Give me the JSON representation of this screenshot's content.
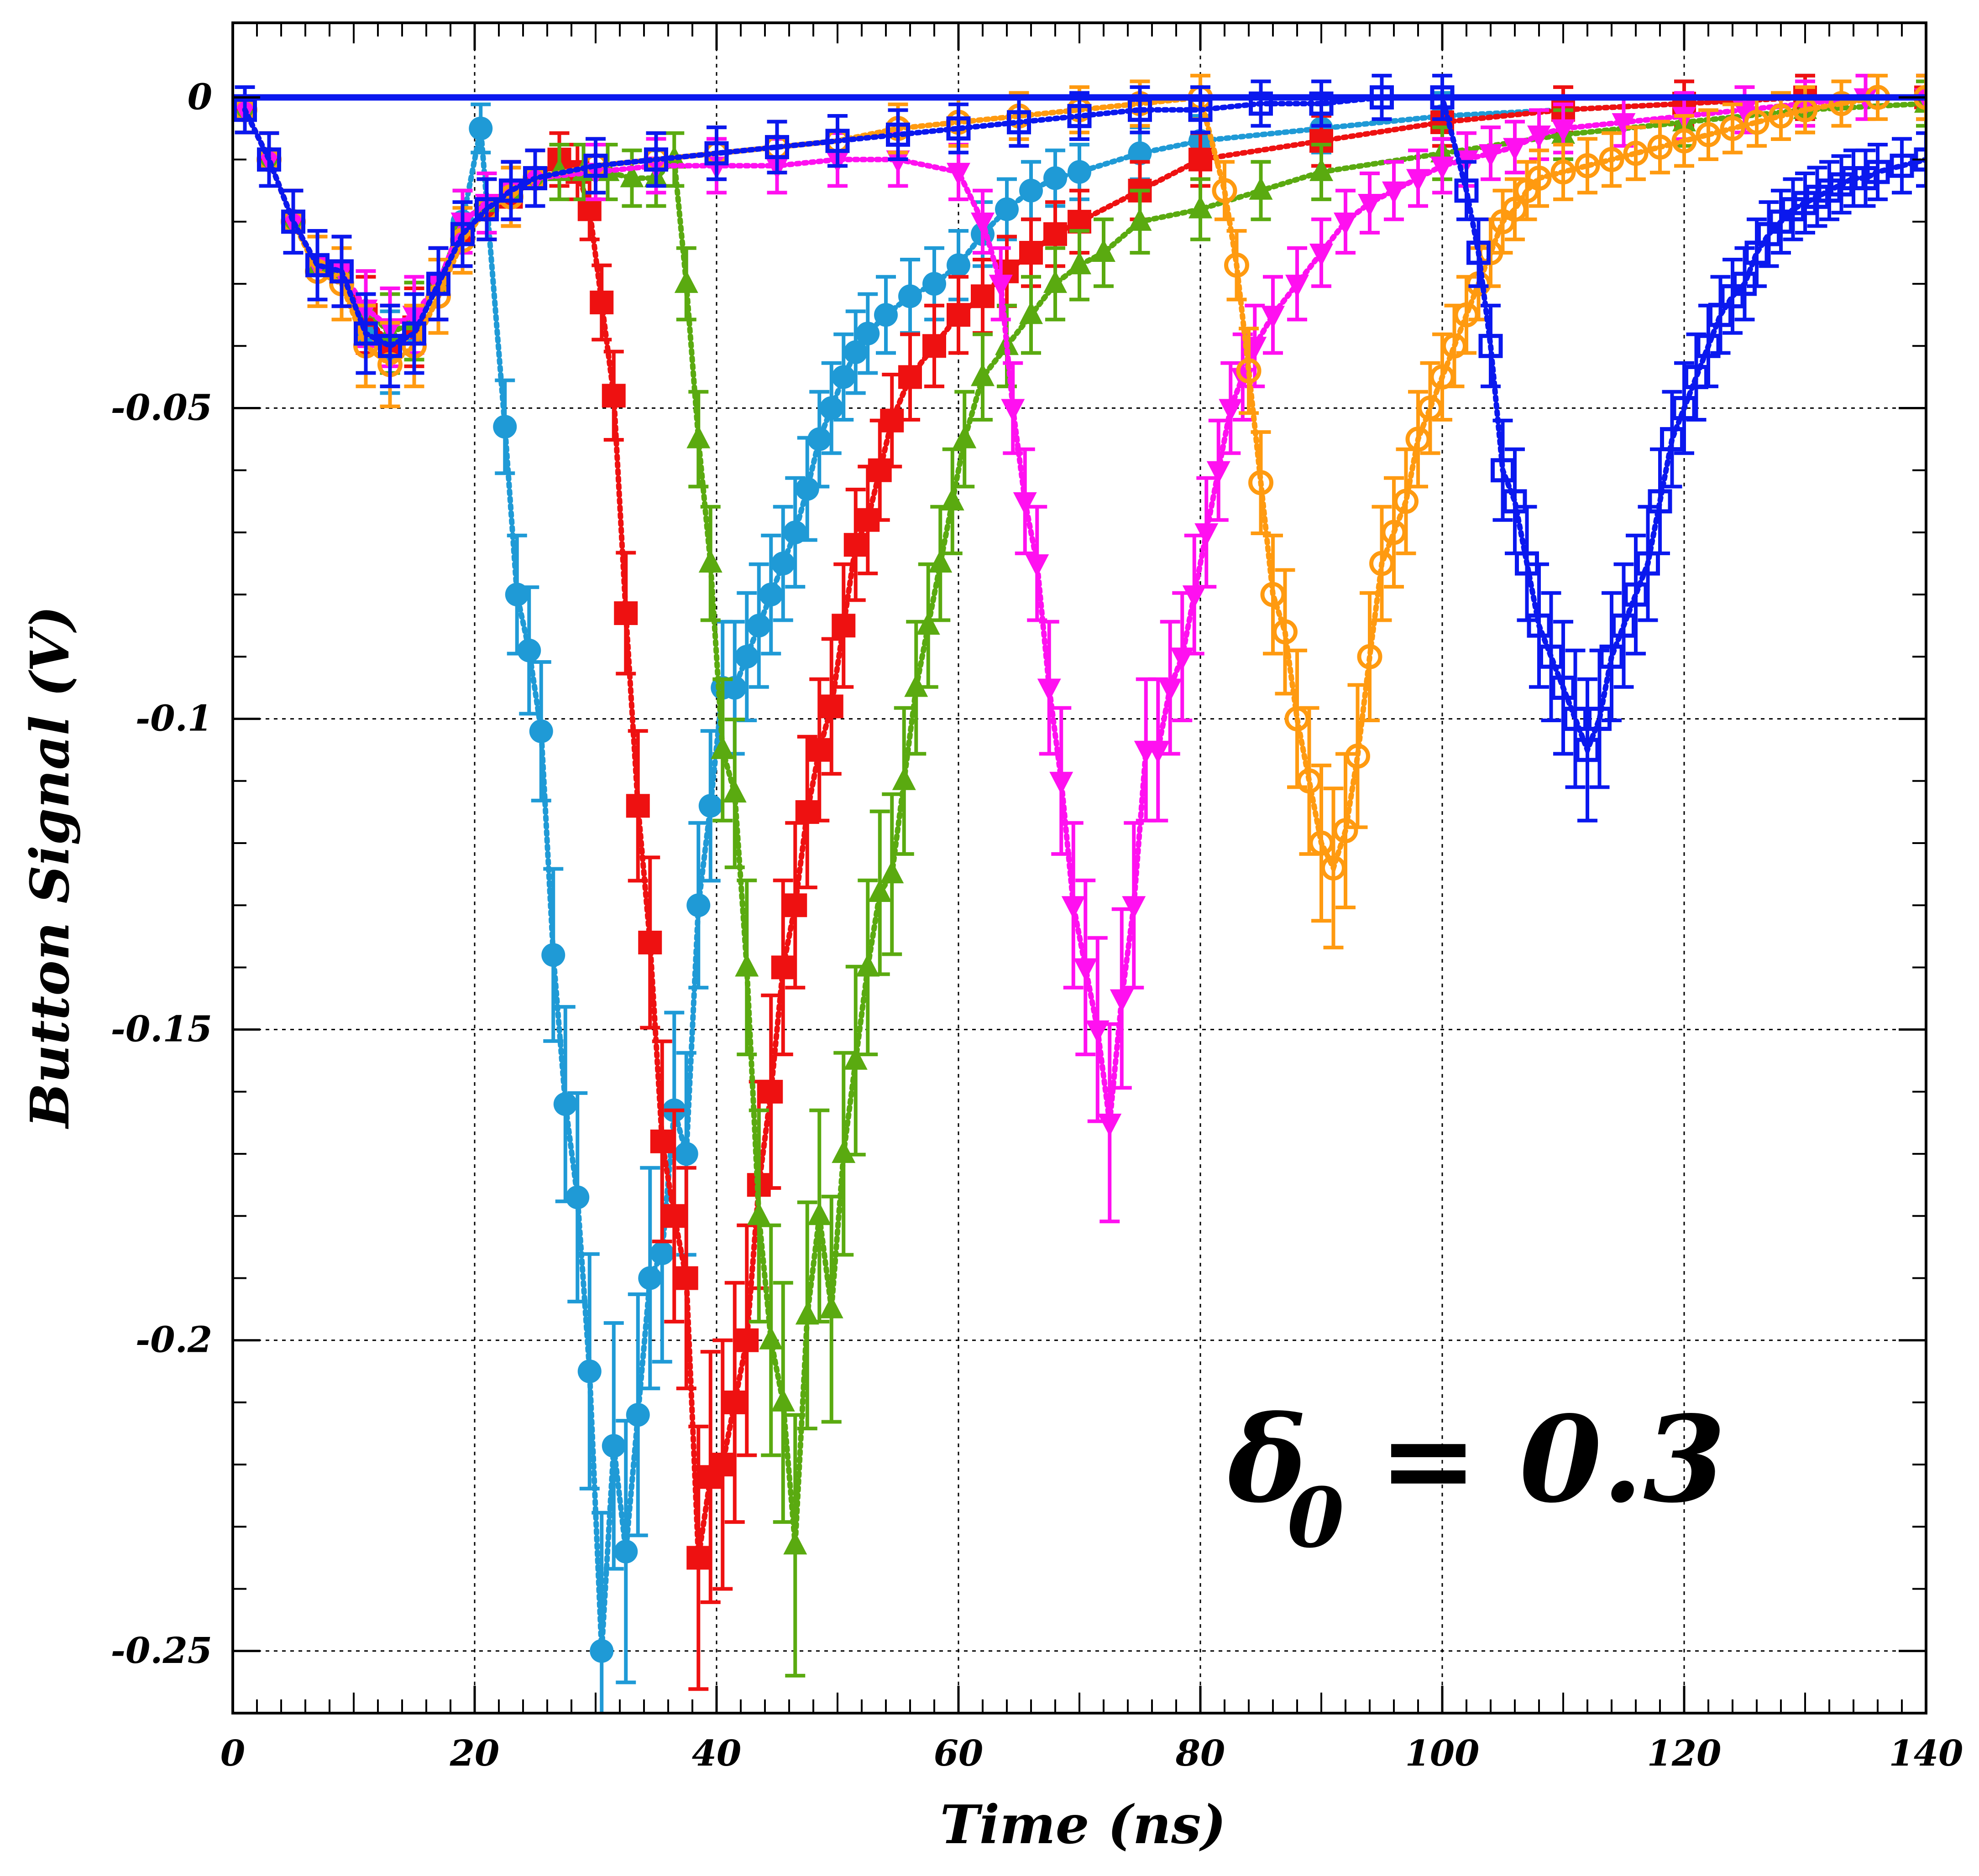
{
  "chart_data": {
    "type": "scatter",
    "title": "",
    "xlabel": "Time (ns)",
    "ylabel": "Button Signal (V)",
    "xlim": [
      0,
      140
    ],
    "ylim": [
      -0.26,
      0.012
    ],
    "x_ticks": [
      0,
      20,
      40,
      60,
      80,
      100,
      120,
      140
    ],
    "x_tick_labels": [
      "0",
      "20",
      "40",
      "60",
      "80",
      "100",
      "120",
      "140"
    ],
    "y_ticks": [
      0,
      -0.05,
      -0.1,
      -0.15,
      -0.2,
      -0.25
    ],
    "y_tick_labels": [
      "0",
      "-0.05",
      "-0.1",
      "-0.15",
      "-0.2",
      "-0.25"
    ],
    "grid": true,
    "annotation": {
      "symbol": "δ",
      "subscript": "0",
      "rest": " = 0.3"
    },
    "series": [
      {
        "color": "#1f9ad6",
        "marker": "circle-filled",
        "x": [
          1,
          3,
          5,
          7,
          9,
          11,
          13,
          15,
          17,
          19,
          20.5,
          22.5,
          23.5,
          24.5,
          25.5,
          26.5,
          27.5,
          28.5,
          29.5,
          30.5,
          31.5,
          32.5,
          33.5,
          34.5,
          35.5,
          36.5,
          37.5,
          38.5,
          39.5,
          40.5,
          41.5,
          42.5,
          43.5,
          44.5,
          45.5,
          46.5,
          47.5,
          48.5,
          49.5,
          50.5,
          51.5,
          52.5,
          54,
          56,
          58,
          60,
          62,
          64,
          66,
          68,
          70,
          75,
          80,
          90,
          100,
          110,
          120,
          130,
          140
        ],
        "y": [
          -0.002,
          -0.01,
          -0.02,
          -0.027,
          -0.028,
          -0.038,
          -0.041,
          -0.038,
          -0.03,
          -0.02,
          -0.005,
          -0.053,
          -0.08,
          -0.089,
          -0.102,
          -0.138,
          -0.162,
          -0.177,
          -0.205,
          -0.25,
          -0.217,
          -0.234,
          -0.212,
          -0.19,
          -0.186,
          -0.163,
          -0.17,
          -0.13,
          -0.114,
          -0.095,
          -0.095,
          -0.09,
          -0.085,
          -0.08,
          -0.075,
          -0.07,
          -0.063,
          -0.055,
          -0.05,
          -0.045,
          -0.041,
          -0.038,
          -0.035,
          -0.032,
          -0.03,
          -0.027,
          -0.022,
          -0.018,
          -0.015,
          -0.013,
          -0.012,
          -0.009,
          -0.007,
          -0.005,
          -0.003,
          -0.002,
          -0.001,
          0,
          0
        ]
      },
      {
        "color": "#ee1111",
        "marker": "square-filled",
        "x": [
          1,
          3,
          5,
          7,
          9,
          11,
          13,
          15,
          17,
          19,
          21,
          23,
          25,
          27,
          28.5,
          29.5,
          30.5,
          31.5,
          32.5,
          33.5,
          34.5,
          35.5,
          36.5,
          37.5,
          38.5,
          39.5,
          40.5,
          41.5,
          42.5,
          43.5,
          44.5,
          45.5,
          46.5,
          47.5,
          48.5,
          49.5,
          50.5,
          51.5,
          52.5,
          53.5,
          54.5,
          56,
          58,
          60,
          62,
          64,
          66,
          68,
          70,
          75,
          80,
          90,
          100,
          110,
          120,
          130,
          140
        ],
        "y": [
          -0.002,
          -0.01,
          -0.02,
          -0.027,
          -0.028,
          -0.035,
          -0.04,
          -0.037,
          -0.03,
          -0.022,
          -0.018,
          -0.016,
          -0.013,
          -0.01,
          -0.012,
          -0.018,
          -0.033,
          -0.048,
          -0.083,
          -0.114,
          -0.136,
          -0.168,
          -0.18,
          -0.19,
          -0.235,
          -0.222,
          -0.22,
          -0.21,
          -0.2,
          -0.175,
          -0.16,
          -0.14,
          -0.13,
          -0.115,
          -0.105,
          -0.098,
          -0.085,
          -0.072,
          -0.068,
          -0.06,
          -0.052,
          -0.045,
          -0.04,
          -0.035,
          -0.032,
          -0.028,
          -0.025,
          -0.022,
          -0.02,
          -0.015,
          -0.01,
          -0.007,
          -0.004,
          -0.002,
          -0.001,
          0,
          0
        ]
      },
      {
        "color": "#5aaa10",
        "marker": "triangle-up-filled",
        "x": [
          1,
          3,
          5,
          7,
          9,
          11,
          13,
          15,
          17,
          19,
          21,
          23,
          25,
          27,
          29,
          31,
          33,
          35,
          36.5,
          37.5,
          38.5,
          39.5,
          40.5,
          41.5,
          42.5,
          43.5,
          44.5,
          45.5,
          46.5,
          47.5,
          48.5,
          49.5,
          50.5,
          51.5,
          52.5,
          53.5,
          54.5,
          55.5,
          56.5,
          57.5,
          58.5,
          59.5,
          60.5,
          62,
          64,
          66,
          68,
          70,
          72,
          75,
          80,
          85,
          90,
          100,
          110,
          120,
          130,
          140
        ],
        "y": [
          -0.002,
          -0.01,
          -0.02,
          -0.027,
          -0.028,
          -0.034,
          -0.038,
          -0.036,
          -0.03,
          -0.02,
          -0.017,
          -0.015,
          -0.013,
          -0.012,
          -0.012,
          -0.012,
          -0.013,
          -0.013,
          -0.01,
          -0.03,
          -0.055,
          -0.075,
          -0.105,
          -0.112,
          -0.14,
          -0.18,
          -0.2,
          -0.21,
          -0.233,
          -0.196,
          -0.18,
          -0.195,
          -0.17,
          -0.155,
          -0.14,
          -0.128,
          -0.125,
          -0.11,
          -0.095,
          -0.085,
          -0.075,
          -0.065,
          -0.055,
          -0.045,
          -0.04,
          -0.035,
          -0.03,
          -0.027,
          -0.025,
          -0.02,
          -0.018,
          -0.015,
          -0.012,
          -0.009,
          -0.006,
          -0.004,
          -0.002,
          -0.001
        ]
      },
      {
        "color": "#ff10f0",
        "marker": "triangle-down-filled",
        "x": [
          1,
          3,
          5,
          7,
          9,
          11,
          13,
          15,
          17,
          19,
          21,
          23,
          25,
          30,
          35,
          40,
          45,
          50,
          55,
          60,
          62,
          63.5,
          64.5,
          65.5,
          66.5,
          67.5,
          68.5,
          69.5,
          70.5,
          71.5,
          72.5,
          73.5,
          74.5,
          75.5,
          76.5,
          77.5,
          78.5,
          79.5,
          80.5,
          81.5,
          82.5,
          83.5,
          84.5,
          86,
          88,
          90,
          92,
          94,
          96,
          98,
          100,
          102,
          104,
          106,
          108,
          110,
          115,
          120,
          125,
          130,
          135,
          140
        ],
        "y": [
          -0.002,
          -0.01,
          -0.02,
          -0.027,
          -0.028,
          -0.034,
          -0.037,
          -0.035,
          -0.03,
          -0.02,
          -0.017,
          -0.015,
          -0.013,
          -0.012,
          -0.011,
          -0.011,
          -0.011,
          -0.01,
          -0.01,
          -0.012,
          -0.02,
          -0.03,
          -0.05,
          -0.065,
          -0.075,
          -0.095,
          -0.11,
          -0.13,
          -0.14,
          -0.15,
          -0.165,
          -0.145,
          -0.13,
          -0.105,
          -0.105,
          -0.095,
          -0.09,
          -0.08,
          -0.07,
          -0.06,
          -0.05,
          -0.045,
          -0.04,
          -0.035,
          -0.03,
          -0.025,
          -0.02,
          -0.017,
          -0.015,
          -0.013,
          -0.011,
          -0.01,
          -0.009,
          -0.008,
          -0.006,
          -0.005,
          -0.004,
          -0.003,
          -0.002,
          -0.001,
          0,
          0
        ]
      },
      {
        "color": "#ff9a10",
        "marker": "circle-open",
        "x": [
          1,
          3,
          5,
          7,
          9,
          11,
          13,
          15,
          17,
          19,
          21,
          23,
          25,
          30,
          35,
          40,
          45,
          50,
          55,
          60,
          65,
          70,
          75,
          80,
          82,
          83,
          84,
          85,
          86,
          87,
          88,
          89,
          90,
          91,
          92,
          93,
          94,
          95,
          96,
          97,
          98,
          99,
          100,
          101,
          102,
          103,
          104,
          105,
          106,
          107,
          108,
          110,
          112,
          114,
          116,
          118,
          120,
          122,
          124,
          126,
          128,
          130,
          133,
          136,
          140
        ],
        "y": [
          -0.002,
          -0.01,
          -0.02,
          -0.028,
          -0.03,
          -0.04,
          -0.043,
          -0.04,
          -0.032,
          -0.023,
          -0.018,
          -0.016,
          -0.013,
          -0.011,
          -0.01,
          -0.009,
          -0.008,
          -0.007,
          -0.005,
          -0.004,
          -0.003,
          -0.002,
          -0.001,
          0,
          -0.015,
          -0.027,
          -0.044,
          -0.062,
          -0.08,
          -0.086,
          -0.1,
          -0.11,
          -0.12,
          -0.124,
          -0.118,
          -0.106,
          -0.09,
          -0.075,
          -0.07,
          -0.065,
          -0.055,
          -0.05,
          -0.045,
          -0.04,
          -0.035,
          -0.03,
          -0.025,
          -0.02,
          -0.018,
          -0.015,
          -0.013,
          -0.012,
          -0.011,
          -0.01,
          -0.009,
          -0.008,
          -0.007,
          -0.006,
          -0.005,
          -0.004,
          -0.003,
          -0.002,
          -0.001,
          0,
          0
        ]
      },
      {
        "color": "#0a18ee",
        "marker": "square-open",
        "x": [
          1,
          3,
          5,
          7,
          9,
          11,
          13,
          15,
          17,
          19,
          21,
          23,
          25,
          30,
          35,
          40,
          45,
          50,
          55,
          60,
          65,
          70,
          75,
          80,
          85,
          90,
          95,
          100,
          102,
          103,
          104,
          105,
          106,
          107,
          108,
          109,
          110,
          111,
          112,
          113,
          114,
          115,
          116,
          117,
          118,
          119,
          120,
          121,
          122,
          123,
          124,
          125,
          126,
          127,
          128,
          129,
          130,
          131,
          132,
          133,
          134,
          135,
          136,
          138,
          140
        ],
        "y": [
          -0.002,
          -0.01,
          -0.02,
          -0.027,
          -0.028,
          -0.038,
          -0.04,
          -0.038,
          -0.03,
          -0.022,
          -0.018,
          -0.015,
          -0.013,
          -0.011,
          -0.01,
          -0.009,
          -0.008,
          -0.007,
          -0.006,
          -0.005,
          -0.004,
          -0.003,
          -0.002,
          -0.002,
          -0.001,
          -0.001,
          0,
          0,
          -0.015,
          -0.025,
          -0.04,
          -0.06,
          -0.065,
          -0.075,
          -0.085,
          -0.09,
          -0.095,
          -0.1,
          -0.105,
          -0.1,
          -0.09,
          -0.085,
          -0.08,
          -0.075,
          -0.065,
          -0.055,
          -0.05,
          -0.045,
          -0.04,
          -0.035,
          -0.032,
          -0.03,
          -0.025,
          -0.022,
          -0.02,
          -0.018,
          -0.017,
          -0.016,
          -0.015,
          -0.014,
          -0.013,
          -0.013,
          -0.012,
          -0.011,
          -0.01
        ]
      }
    ]
  }
}
